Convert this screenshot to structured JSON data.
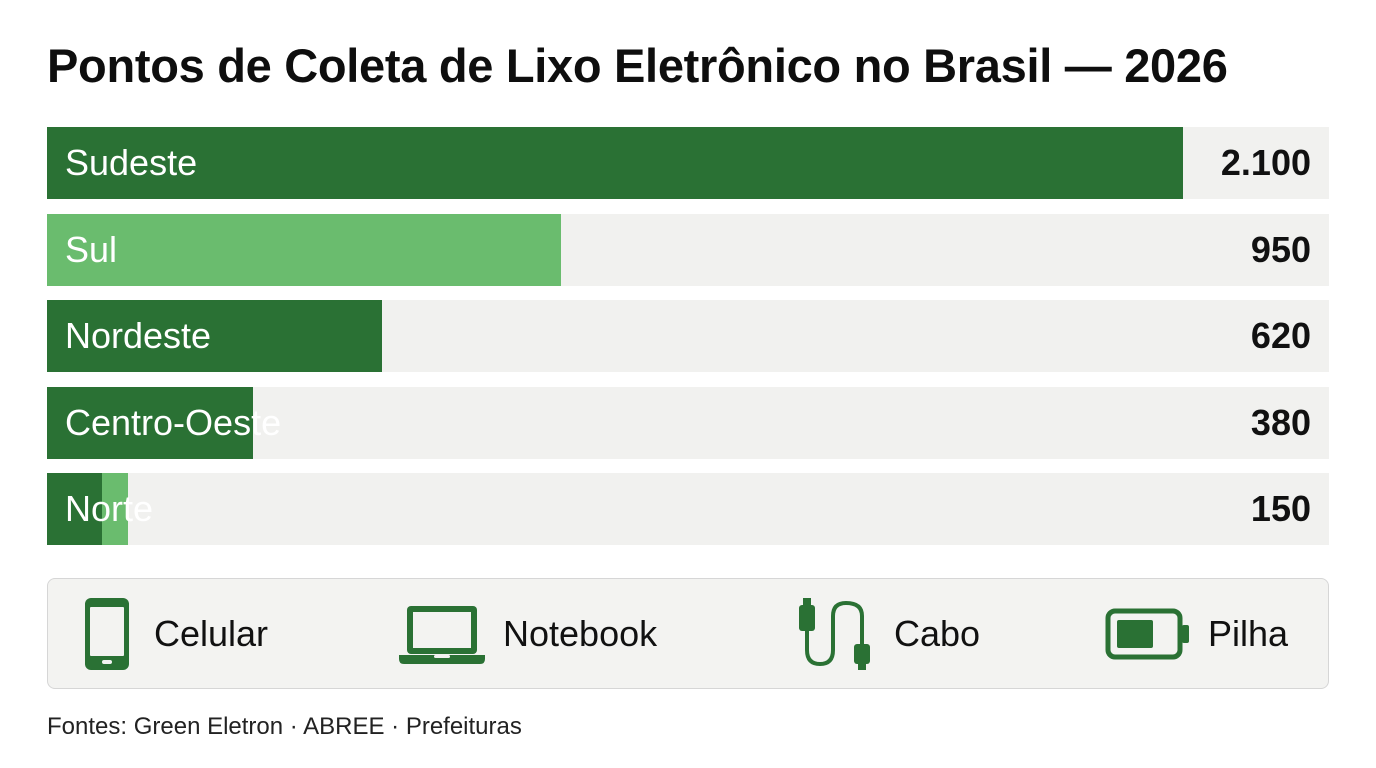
{
  "chart_data": {
    "type": "bar",
    "orientation": "horizontal",
    "title": "Pontos de Coleta de Lixo Eletrônico no Brasil — 2026",
    "categories": [
      "Sudeste",
      "Sul",
      "Nordeste",
      "Centro-Oeste",
      "Norte"
    ],
    "values": [
      2100,
      950,
      620,
      380,
      150
    ],
    "value_labels": [
      "2.100",
      "950",
      "620",
      "380",
      "150"
    ],
    "xlim": [
      0,
      2370
    ],
    "grid": false,
    "colors": {
      "dark_green": "#2a7134",
      "light_green": "#6abc6e",
      "track": "#f1f1ef"
    }
  },
  "legend": {
    "items": [
      {
        "label": "Celular",
        "icon": "smartphone-icon"
      },
      {
        "label": "Notebook",
        "icon": "laptop-icon"
      },
      {
        "label": "Cabo",
        "icon": "usb-cable-icon"
      },
      {
        "label": "Pilha",
        "icon": "battery-icon"
      }
    ],
    "icon_color": "#2a7134"
  },
  "source": "Fontes: Green Eletron · ABREE · Prefeituras"
}
